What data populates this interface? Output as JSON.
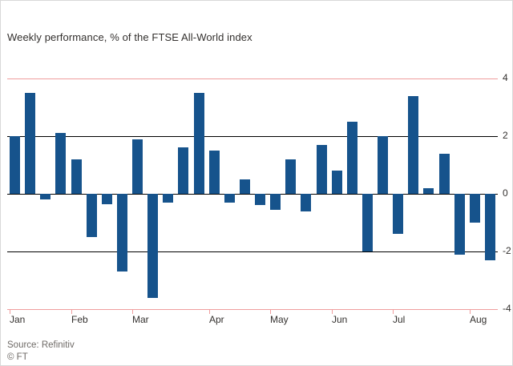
{
  "chart_data": {
    "type": "bar",
    "title": "Weekly performance, % of the FTSE All-World index",
    "source": "Source: Refinitiv",
    "copyright": "© FT",
    "ylim": [
      -4,
      4
    ],
    "yticks": [
      4,
      2,
      0,
      -2,
      -4
    ],
    "ytick_labels": [
      "4",
      "2",
      "0",
      "-2",
      "-4"
    ],
    "months": [
      "Jan",
      "Feb",
      "Mar",
      "Apr",
      "May",
      "Jun",
      "Jul",
      "Aug"
    ],
    "month_week_index": [
      0,
      4,
      8,
      13,
      17,
      21,
      25,
      30
    ],
    "values": [
      2.0,
      3.5,
      -0.2,
      2.1,
      1.2,
      -1.5,
      -0.35,
      -2.7,
      1.9,
      -3.6,
      -0.3,
      1.6,
      3.5,
      1.5,
      -0.3,
      0.5,
      -0.4,
      -0.55,
      1.2,
      -0.6,
      1.7,
      0.8,
      2.5,
      -2.0,
      2.0,
      -1.4,
      3.4,
      0.2,
      1.4,
      -2.1,
      -1.0,
      -2.3
    ],
    "legend": "none",
    "grid": "horizontal-only",
    "colors": {
      "bar": "#16538c",
      "outer_grid": "#f09e9e",
      "inner_grid": "#000000",
      "text": "#33302e",
      "muted_text": "#6e6a66"
    }
  }
}
